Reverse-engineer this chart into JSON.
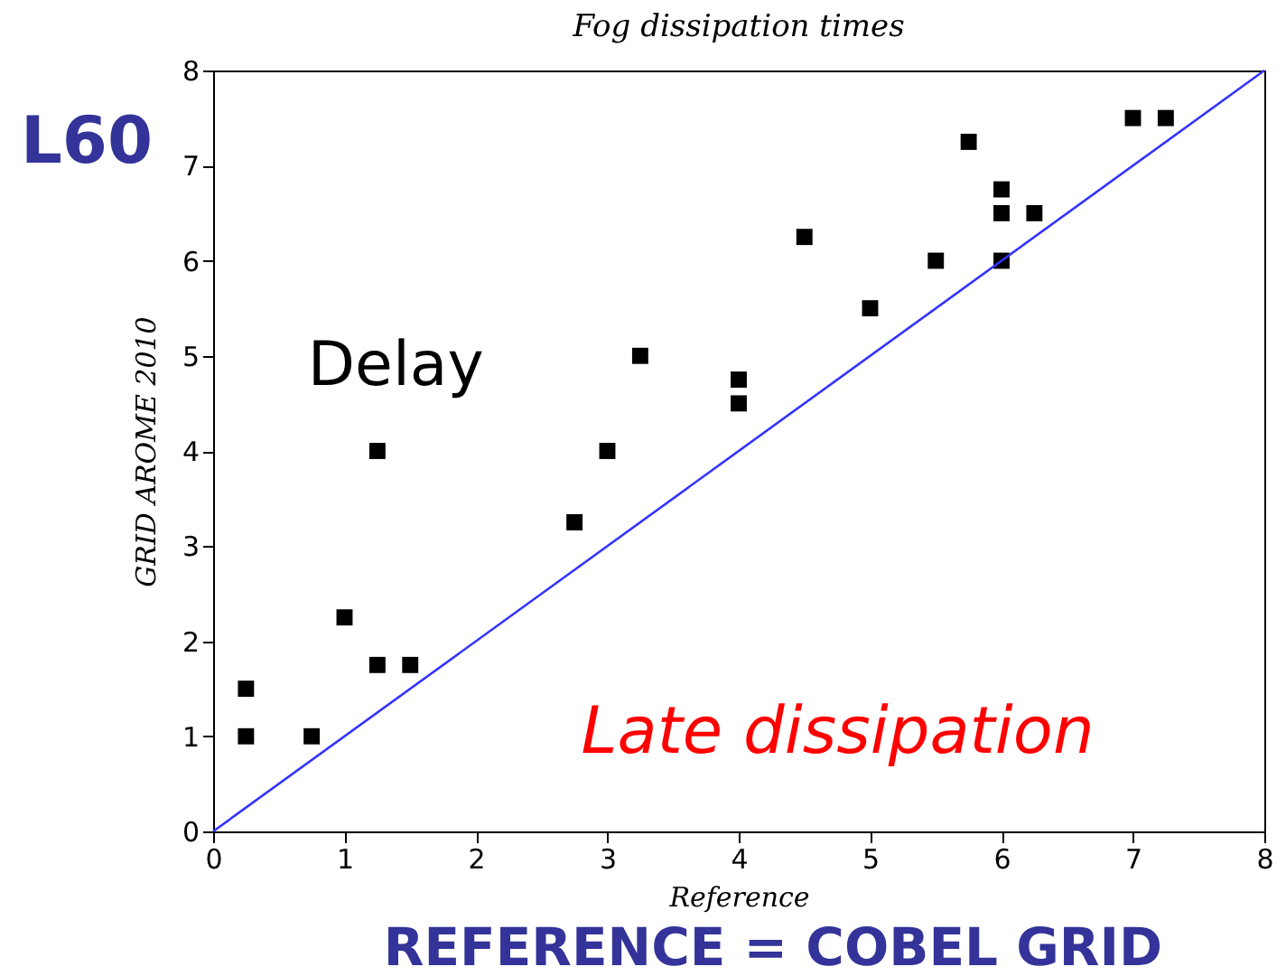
{
  "chart_data": {
    "type": "scatter",
    "title": "Fog dissipation times",
    "xlabel": "Reference",
    "ylabel": "GRID AROME 2010",
    "xlim": [
      0,
      8
    ],
    "ylim": [
      0,
      8
    ],
    "xticks": [
      0,
      1,
      2,
      3,
      4,
      5,
      6,
      7,
      8
    ],
    "yticks": [
      0,
      1,
      2,
      3,
      4,
      5,
      6,
      7,
      8
    ],
    "series": [
      {
        "marker": "square",
        "color": "#000000",
        "x": [
          0.25,
          0.25,
          0.75,
          1,
          1.25,
          1.25,
          1.5,
          2.75,
          3,
          3.25,
          4,
          4,
          4.5,
          5,
          5.5,
          5.75,
          6,
          6,
          6,
          6.25,
          7,
          7.25
        ],
        "values": [
          1.5,
          1,
          1,
          2.25,
          4,
          1.75,
          1.75,
          3.25,
          4,
          5,
          4.75,
          4.5,
          6.25,
          5.5,
          6,
          7.25,
          6.75,
          6.5,
          6,
          6.5,
          7.5,
          7.5
        ]
      },
      {
        "type": "line",
        "color": "#3333ff",
        "x": [
          0,
          8
        ],
        "values": [
          0,
          8
        ]
      }
    ],
    "annotations": [
      "Delay",
      "Late dissipation",
      "L60",
      "REFERENCE = COBEL GRID"
    ]
  }
}
